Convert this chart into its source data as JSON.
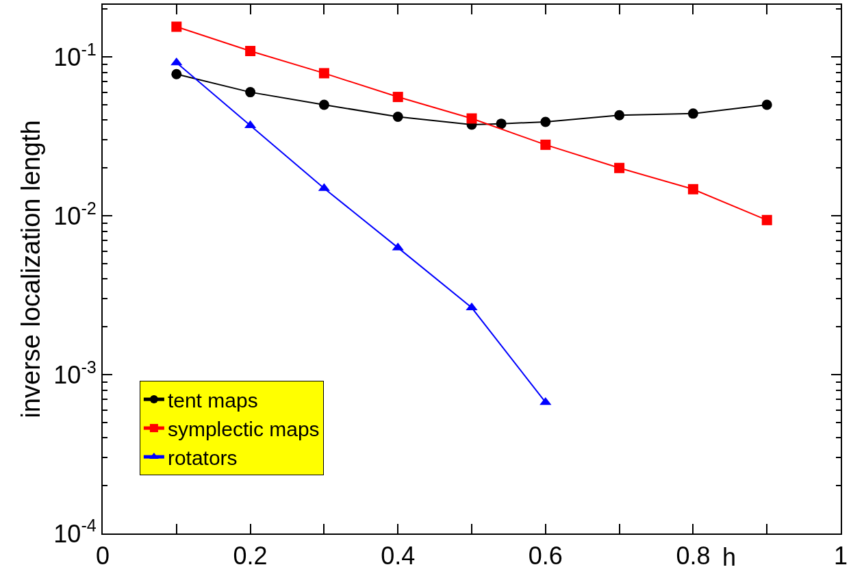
{
  "chart_data": {
    "type": "line",
    "xlabel": "h",
    "ylabel": "inverse localization length",
    "log": "y",
    "legend": "bottom left",
    "xlim": [
      0,
      1
    ],
    "xticks": [
      0,
      {
        "value": 0.1,
        "label": null
      },
      0.2,
      {
        "value": 0.3,
        "label": null
      },
      0.4,
      {
        "value": 0.5,
        "label": null
      },
      0.6,
      {
        "value": 0.7,
        "label": null
      },
      0.8,
      {
        "value": 0.9,
        "label": null
      },
      1
    ],
    "ylim": [
      0.0001,
      0.213
    ],
    "yticks": [
      {
        "value": 0.0001,
        "label": "10$^{-4}$"
      },
      {
        "value": 0.001,
        "label": "10$^{-3}$"
      },
      {
        "value": 0.01,
        "label": "10$^{-2}$"
      },
      {
        "value": 0.1,
        "label": "10$^{-1}$"
      }
    ],
    "series": [
      {
        "name": "tent maps",
        "color": "#000000",
        "marker": "circle",
        "x": [
          0.1,
          0.2,
          0.3,
          0.4,
          0.5,
          0.54,
          0.6,
          0.7,
          0.8,
          0.9
        ],
        "values": [
          0.078,
          0.06,
          0.05,
          0.042,
          0.0375,
          0.038,
          0.039,
          0.043,
          0.044,
          0.05
        ]
      },
      {
        "name": "symplectic maps",
        "color": "#ff0000",
        "marker": "square",
        "x": [
          0.1,
          0.2,
          0.3,
          0.4,
          0.5,
          0.6,
          0.7,
          0.8,
          0.9
        ],
        "values": [
          0.155,
          0.109,
          0.079,
          0.056,
          0.041,
          0.028,
          0.02,
          0.0147,
          0.0094
        ]
      },
      {
        "name": "rotators",
        "color": "#0000ff",
        "marker": "triangle",
        "x": [
          0.1,
          0.2,
          0.3,
          0.4,
          0.5,
          0.6
        ],
        "values": [
          0.092,
          0.037,
          0.0149,
          0.0063,
          0.00264,
          0.00067
        ]
      }
    ]
  }
}
